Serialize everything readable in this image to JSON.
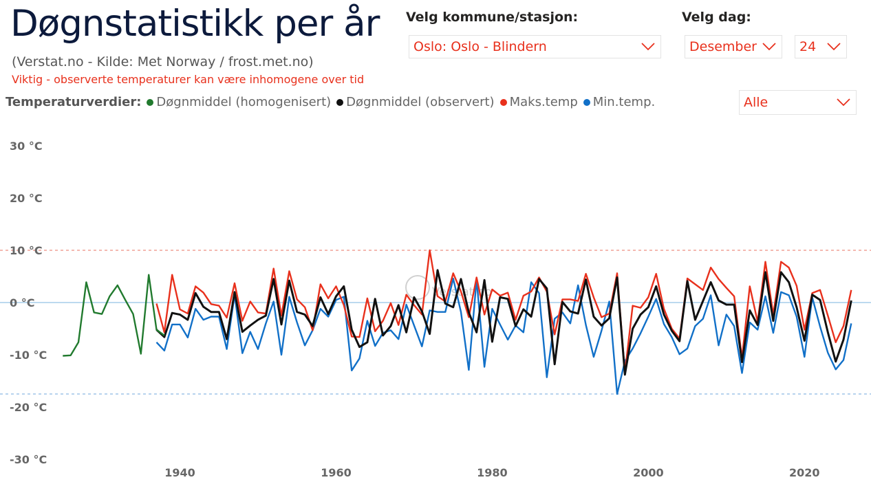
{
  "header": {
    "title": "Døgnstatistikk per år",
    "subtitle": "(Verstat.no - Kilde: Met Norway / frost.met.no)",
    "warning": "Viktig - observerte temperaturer kan være inhomogene over tid"
  },
  "filters": {
    "station_label": "Velg kommune/stasjon:",
    "station_value": "Oslo: Oslo - Blindern",
    "day_label": "Velg dag:",
    "month_value": "Desember",
    "day_value": "24",
    "series_value": "Alle"
  },
  "legend": {
    "title": "Temperaturverdier:",
    "items": [
      {
        "label": "Døgnmiddel (homogenisert)",
        "color": "#217a2e"
      },
      {
        "label": "Døgnmiddel (observert)",
        "color": "#111111"
      },
      {
        "label": "Maks.temp",
        "color": "#e8301c"
      },
      {
        "label": "Min.temp.",
        "color": "#1170c8"
      }
    ]
  },
  "watermark": "Verstat.no",
  "colors": {
    "accent": "#e8301c",
    "green": "#217a2e",
    "black": "#111111",
    "red": "#e8301c",
    "blue": "#1170c8",
    "zero_line": "#bcd9ef",
    "ref_max": "#f4b8b0",
    "ref_min": "#b7d3ee"
  },
  "chart_data": {
    "type": "line",
    "ylim": [
      -30,
      30
    ],
    "xlim": [
      1924,
      2025
    ],
    "yticks": [
      30,
      20,
      10,
      0,
      -10,
      -20,
      -30
    ],
    "ytick_labels": [
      "30 °C",
      "20 °C",
      "10 °C",
      "0 °C",
      "-10 °C",
      "-20 °C",
      "-30 °C"
    ],
    "xticks": [
      1940,
      1960,
      1980,
      2000,
      2020
    ],
    "xtick_labels": [
      "1940",
      "1960",
      "1980",
      "2000",
      "2020"
    ],
    "reference_lines": [
      {
        "value": 0,
        "style": "solid",
        "color": "#bcd9ef"
      },
      {
        "value": 10,
        "style": "dashed",
        "color": "#f4b8b0"
      },
      {
        "value": -17.5,
        "style": "dashed",
        "color": "#b7d3ee"
      }
    ],
    "series": [
      {
        "name": "Døgnmiddel (homogenisert)",
        "color": "#217a2e",
        "start_year": 1925,
        "values": [
          -10.2,
          -10.1,
          -7.6,
          3.9,
          -1.9,
          -2.2,
          1.2,
          3.3,
          0.5,
          -2.2,
          -9.8,
          5.3,
          -5.2,
          -6.3
        ]
      },
      {
        "name": "Døgnmiddel (observert)",
        "color": "#111111",
        "start_year": 1937,
        "values": [
          -5.2,
          -6.6,
          -2.0,
          -2.3,
          -3.3,
          1.8,
          -0.8,
          -1.8,
          -1.8,
          -7.0,
          2.0,
          -5.6,
          -4.4,
          -3.3,
          -2.5,
          4.5,
          -4.2,
          4.2,
          -1.8,
          -2.3,
          -4.5,
          1.0,
          -2.2,
          1.2,
          3.1,
          -5.2,
          -8.5,
          -7.6,
          0.7,
          -6.3,
          -4.5,
          -0.5,
          -5.7,
          1.0,
          -1.7,
          -6.0,
          6.2,
          -0.2,
          -0.9,
          4.5,
          -1.9,
          -5.7,
          4.3,
          -7.5,
          1.0,
          0.7,
          -4.5,
          -1.3,
          -2.7,
          4.5,
          2.7,
          -11.8,
          0.1,
          -1.7,
          -2.1,
          4.4,
          -2.7,
          -4.4,
          -3.0,
          4.8,
          -13.8,
          -5.0,
          -2.3,
          -0.9,
          3.1,
          -2.3,
          -5.4,
          -7.4,
          4.1,
          -3.3,
          0.3,
          3.9,
          0.4,
          -0.4,
          -0.4,
          -11.4,
          -1.5,
          -4.3,
          5.8,
          -3.5,
          5.8,
          3.9,
          -0.9,
          -7.3,
          1.5,
          0.5,
          -5.7,
          -11.3,
          -7.1,
          0.4
        ]
      },
      {
        "name": "Maks.temp",
        "color": "#e8301c",
        "start_year": 1937,
        "values": [
          -0.2,
          -5.7,
          5.3,
          -1.3,
          -2.1,
          3.1,
          1.9,
          -0.3,
          -0.6,
          -2.9,
          3.7,
          -3.5,
          0.2,
          -1.9,
          -2.1,
          6.5,
          -2.5,
          6.0,
          0.6,
          -0.9,
          -5.3,
          3.5,
          0.8,
          3.1,
          -0.5,
          -6.5,
          -6.6,
          0.8,
          -5.5,
          -3.5,
          -0.1,
          -4.3,
          1.5,
          -0.5,
          -2.3,
          10.0,
          1.2,
          0.2,
          5.6,
          2.1,
          -2.8,
          4.8,
          -2.3,
          2.5,
          1.3,
          1.9,
          -3.3,
          1.3,
          2.1,
          4.8,
          2.1,
          -6.1,
          0.6,
          0.6,
          0.3,
          5.5,
          1.0,
          -2.8,
          -2.1,
          5.6,
          -13.4,
          -0.6,
          -1.0,
          1.0,
          5.5,
          -1.2,
          -5.0,
          -6.9,
          4.6,
          3.5,
          2.4,
          6.7,
          4.5,
          2.8,
          1.2,
          -10.6,
          3.1,
          -3.7,
          7.8,
          -2.3,
          7.8,
          6.7,
          3.2,
          -5.2,
          1.8,
          2.4,
          -2.5,
          -7.6,
          -4.5,
          2.4
        ]
      },
      {
        "name": "Min.temp.",
        "color": "#1170c8",
        "start_year": 1937,
        "values": [
          -7.6,
          -9.2,
          -4.2,
          -4.2,
          -6.7,
          -1.2,
          -3.3,
          -2.7,
          -2.7,
          -8.9,
          1.5,
          -9.7,
          -5.6,
          -8.9,
          -4.0,
          0.2,
          -10.0,
          1.1,
          -3.8,
          -8.2,
          -5.3,
          -1.2,
          -2.7,
          0.5,
          1.1,
          -13.0,
          -10.7,
          -3.5,
          -8.3,
          -5.8,
          -5.3,
          -7.0,
          -0.4,
          -4.4,
          -8.4,
          -1.5,
          -1.8,
          -1.8,
          4.6,
          -1.8,
          -12.9,
          4.4,
          -12.3,
          -1.2,
          -4.2,
          -7.1,
          -4.4,
          -5.7,
          3.9,
          1.8,
          -14.3,
          -3.1,
          -1.9,
          -4.0,
          3.3,
          -4.3,
          -10.4,
          -5.4,
          0.2,
          -17.5,
          -11.2,
          -8.8,
          -5.9,
          -2.7,
          0.7,
          -4.1,
          -6.6,
          -9.9,
          -8.8,
          -4.5,
          -3.1,
          1.4,
          -8.2,
          -2.3,
          -4.5,
          -13.5,
          -3.8,
          -5.2,
          1.2,
          -5.8,
          2.0,
          1.4,
          -2.7,
          -10.4,
          1.0,
          -4.6,
          -9.6,
          -12.8,
          -11.0,
          -4.0
        ]
      }
    ]
  }
}
